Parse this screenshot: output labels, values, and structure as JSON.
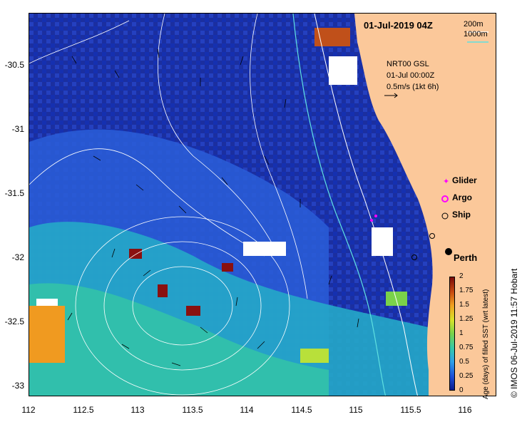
{
  "title": "01-Jul-2019 04Z",
  "bathymetry": {
    "contour1": "200m",
    "contour2": "1000m"
  },
  "currents_info": {
    "line1": "NRT00 GSL",
    "line2": "01-Jul 00:00Z",
    "line3": "0.5m/s (1kt 6h)"
  },
  "legend": {
    "glider": "Glider",
    "argo": "Argo",
    "ship": "Ship"
  },
  "city": "Perth",
  "colorbar": {
    "label": "Age (days) of filled SST (wrt latest)",
    "ticks": [
      "0",
      "0.25",
      "0.5",
      "0.75",
      "1",
      "1.25",
      "1.5",
      "1.75",
      "2"
    ]
  },
  "credit": "© IMOS 06-Jul-2019 11:57 Hobart",
  "axes": {
    "x_ticks": [
      "112",
      "112.5",
      "113",
      "113.5",
      "114",
      "114.5",
      "115",
      "115.5",
      "116"
    ],
    "y_ticks": [
      "-30.5",
      "-31",
      "-31.5",
      "-32",
      "-32.5",
      "-33"
    ]
  },
  "colors": {
    "land": "#fbc89a",
    "ocean_deep": "#1a2ea8",
    "contour": "#ffffff",
    "bathy_200": "#ffffff",
    "bathy_1000": "#5fe0e0",
    "glider": "#ff00ff",
    "argo": "#ff00ff"
  }
}
